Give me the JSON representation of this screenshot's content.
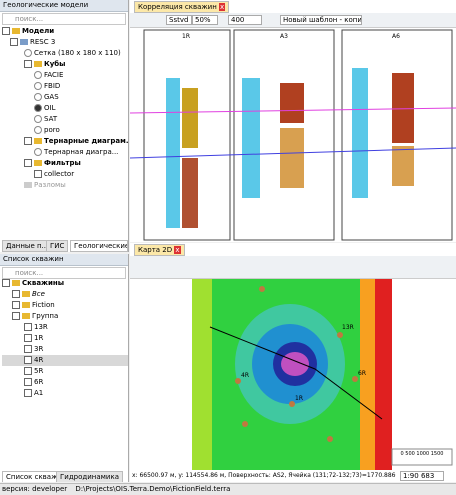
{
  "geo_panel": {
    "title": "Геологические модели",
    "search": "поиск...",
    "tree": [
      "Модели",
      "RESC 3",
      "Сетка (180 x 180 x 110)",
      "Кубы",
      "FACIE",
      "FBID",
      "GAS",
      "OIL",
      "SAT",
      "poro",
      "Тернарные диаграм...",
      "Тернарная диагра...",
      "Фильтры",
      "collector",
      "Разломы"
    ],
    "tabs": [
      "Данные п...",
      "ГИС",
      "Геологические ..."
    ]
  },
  "wells_panel": {
    "title": "Список скважин",
    "search": "поиск...",
    "tree": [
      "Скважины",
      "Все",
      "Fiction",
      "Группа",
      "13R",
      "1R",
      "3R",
      "4R",
      "5R",
      "6R",
      "A1"
    ],
    "tabs": [
      "Список скважин",
      "Гидродинамика"
    ]
  },
  "correlation": {
    "tab": "Корреляция скважин",
    "depth": "Sstvd",
    "zoom": "50%",
    "step": "400",
    "template": "Новый шаблон - копия",
    "wells": [
      "1R",
      "A3",
      "A6"
    ]
  },
  "map": {
    "tab": "Карта 2D",
    "well_labels": [
      "13R",
      "4R",
      "6R",
      "1R"
    ],
    "status": "x: 66500.97 м, y: 114554.86 м, Поверхность: AS2, Ячейка (131;72-132;73)=1770.8860",
    "scale": "1:90 683",
    "scalebar": "0  500 1000 1500"
  },
  "status_bar": {
    "version": "версия: developer",
    "path": "D:\\Projects\\OIS.Terra.Demo\\FictionField.terra"
  }
}
